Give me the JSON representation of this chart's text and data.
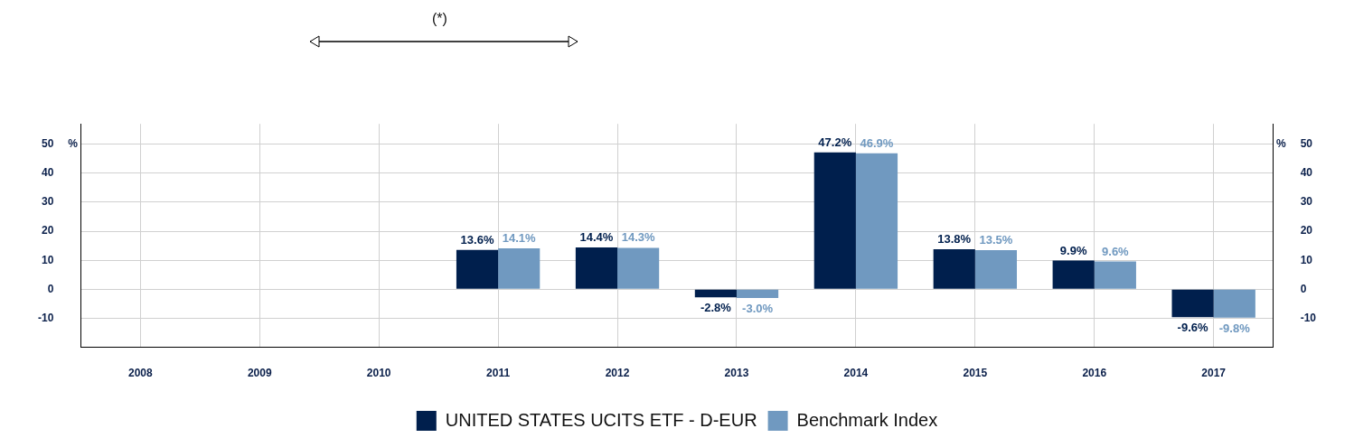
{
  "chart_data": {
    "type": "bar",
    "categories": [
      "2008",
      "2009",
      "2010",
      "2011",
      "2012",
      "2013",
      "2014",
      "2015",
      "2016",
      "2017"
    ],
    "series": [
      {
        "name": "UNITED STATES UCITS ETF - D-EUR",
        "color": "#001f4d",
        "values": [
          null,
          null,
          null,
          13.6,
          14.4,
          -2.8,
          47.2,
          13.8,
          9.9,
          -9.6
        ],
        "value_labels": [
          null,
          null,
          null,
          "13.6%",
          "14.4%",
          "-2.8%",
          "47.2%",
          "13.8%",
          "9.9%",
          "-9.6%"
        ]
      },
      {
        "name": "Benchmark Index",
        "color": "#7099c0",
        "values": [
          null,
          null,
          null,
          14.1,
          14.3,
          -3.0,
          46.9,
          13.5,
          9.6,
          -9.8
        ],
        "value_labels": [
          null,
          null,
          null,
          "14.1%",
          "14.3%",
          "-3.0%",
          "46.9%",
          "13.5%",
          "9.6%",
          "-9.8%"
        ]
      }
    ],
    "ylabel": "%",
    "y2label": "%",
    "ylim": [
      -20,
      57
    ],
    "yticks": [
      -10,
      0,
      10,
      20,
      30,
      40,
      50
    ],
    "y2lim": [
      -20,
      57
    ],
    "y2ticks": [
      -10,
      0,
      10,
      20,
      30,
      40,
      50
    ],
    "annotations": [
      "(*)"
    ],
    "grid": true,
    "legend": "bottom"
  }
}
